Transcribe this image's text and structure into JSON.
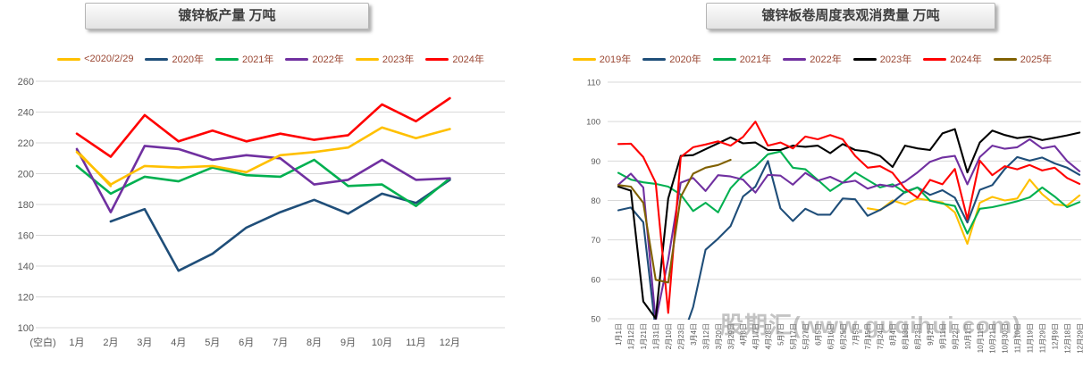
{
  "watermark": {
    "text": "股期汇(www.guqihui.com)"
  },
  "legend_text_color": "#9A4632",
  "chart_data": [
    {
      "id": "production",
      "type": "line",
      "title": "镀锌板产量  万吨",
      "unit": "万吨",
      "categories": [
        "(空白)",
        "1月",
        "2月",
        "3月",
        "4月",
        "5月",
        "6月",
        "7月",
        "8月",
        "9月",
        "10月",
        "11月",
        "12月"
      ],
      "ylim": [
        100,
        260
      ],
      "ytick_step": 20,
      "yticks": [
        260,
        240,
        220,
        200,
        180,
        160,
        140,
        120,
        100
      ],
      "grid": true,
      "legend_position": "top",
      "series": [
        {
          "name": "<2020/2/29",
          "color": "#FFC000",
          "values": [
            null,
            215,
            192,
            null,
            null,
            null,
            null,
            null,
            null,
            null,
            null,
            null,
            null
          ]
        },
        {
          "name": "2020年",
          "color": "#1F4E79",
          "values": [
            null,
            null,
            169,
            177,
            137,
            148,
            165,
            175,
            183,
            174,
            187,
            181,
            196
          ]
        },
        {
          "name": "2021年",
          "color": "#00B050",
          "values": [
            null,
            205,
            187,
            198,
            195,
            204,
            199,
            198,
            209,
            192,
            193,
            179,
            197
          ]
        },
        {
          "name": "2022年",
          "color": "#7030A0",
          "values": [
            null,
            216,
            175,
            218,
            216,
            209,
            212,
            210,
            193,
            196,
            209,
            196,
            197
          ]
        },
        {
          "name": "2023年",
          "color": "#FFC000",
          "values": [
            null,
            214,
            193,
            205,
            204,
            205,
            201,
            212,
            214,
            217,
            230,
            223,
            229
          ]
        },
        {
          "name": "2024年",
          "color": "#FF0000",
          "values": [
            null,
            226,
            211,
            238,
            221,
            228,
            221,
            226,
            222,
            225,
            245,
            234,
            249
          ]
        }
      ]
    },
    {
      "id": "consumption",
      "type": "line",
      "title": "镀锌板卷周度表观消费量  万吨",
      "unit": "万吨",
      "categories": [
        "1月1日",
        "1月12日",
        "1月21日",
        "1月31日",
        "2月10日",
        "2月23日",
        "3月4日",
        "3月12日",
        "3月20日",
        "3月29日",
        "4月8日",
        "4月17日",
        "4月28日",
        "5月7日",
        "5月17日",
        "5月27日",
        "6月5日",
        "6月16日",
        "6月25日",
        "7月5日",
        "7月15日",
        "7月24日",
        "8月4日",
        "8月13日",
        "8月23日",
        "9月2日",
        "9月11日",
        "9月22日",
        "10月1日",
        "10月11日",
        "10月21日",
        "10月30日",
        "11月10日",
        "11月19日",
        "11月29日",
        "12月9日",
        "12月18日",
        "12月29日"
      ],
      "ylim": [
        50,
        110
      ],
      "ytick_step": 10,
      "yticks": [
        110,
        100,
        90,
        80,
        70,
        60,
        50
      ],
      "grid": true,
      "legend_position": "top",
      "x_label_rotation": -90,
      "series": [
        {
          "name": "2019年",
          "color": "#FFC000",
          "values": [
            null,
            null,
            null,
            null,
            null,
            null,
            null,
            null,
            null,
            null,
            null,
            null,
            null,
            null,
            null,
            null,
            null,
            null,
            null,
            null,
            78,
            77.5,
            80,
            79,
            80.5,
            80,
            79.5,
            77,
            69,
            79.4,
            80.9,
            80,
            80.5,
            85.3,
            81.6,
            79,
            78.7,
            81.3
          ]
        },
        {
          "name": "2020年",
          "color": "#1F4E79",
          "values": [
            77.5,
            78.2,
            74.5,
            47,
            42,
            44,
            53,
            67.5,
            70.3,
            73.5,
            81,
            83.5,
            90,
            78,
            74.8,
            77.9,
            76.4,
            76.4,
            80.5,
            80.3,
            76.1,
            77.6,
            79.5,
            82.2,
            83.3,
            81.4,
            82.6,
            80.7,
            74.4,
            82.7,
            83.9,
            88,
            91,
            90.1,
            90.9,
            89.4,
            88.3,
            86.5
          ]
        },
        {
          "name": "2021年",
          "color": "#00B050",
          "values": [
            87,
            85.3,
            84.6,
            84.2,
            83.5,
            81.5,
            77.3,
            79.4,
            77,
            83.1,
            86.4,
            88.6,
            91.7,
            92.4,
            88.3,
            87.9,
            85.2,
            82.4,
            84.5,
            87.1,
            85.2,
            83.3,
            84.1,
            82,
            83.3,
            79.9,
            79.2,
            78.6,
            71.6,
            77.9,
            78.3,
            79,
            79.8,
            80.8,
            83.3,
            81,
            78.3,
            79.6
          ]
        },
        {
          "name": "2022年",
          "color": "#7030A0",
          "values": [
            84,
            86.8,
            83.3,
            49.5,
            65,
            84.5,
            85.7,
            82.4,
            86.4,
            86.1,
            85.3,
            82,
            86.5,
            86.3,
            84,
            87,
            85,
            86,
            84.5,
            85,
            83,
            84,
            83.5,
            84.8,
            87.1,
            89.8,
            90.9,
            91.3,
            84.1,
            91,
            93.9,
            93.1,
            93.5,
            95.5,
            93.2,
            93.8,
            90,
            87.4
          ]
        },
        {
          "name": "2023年",
          "color": "#000000",
          "values": [
            83.5,
            82.5,
            54.4,
            50.1,
            80.5,
            91.3,
            91.5,
            93,
            94.5,
            96,
            94.5,
            94.7,
            92.8,
            92.8,
            93.9,
            93.6,
            93.9,
            92,
            94.3,
            92.8,
            92.4,
            91.3,
            88.5,
            93.9,
            93.2,
            92.8,
            97,
            98.1,
            87.1,
            94.7,
            97.7,
            96.6,
            95.8,
            96.2,
            95.3,
            95.9,
            96.5,
            97.2
          ]
        },
        {
          "name": "2024年",
          "color": "#FF0000",
          "values": [
            94.3,
            94.4,
            91,
            84.5,
            51.5,
            91,
            93.5,
            94.2,
            95,
            93.9,
            96.1,
            100,
            93.9,
            94.7,
            93.2,
            96.2,
            95.5,
            96.6,
            95.5,
            91.3,
            88.3,
            88.7,
            87,
            83,
            80.7,
            85.2,
            84.1,
            88,
            75.3,
            90.1,
            86.4,
            88.7,
            87.9,
            89,
            87.6,
            88.3,
            85.7,
            84.2
          ]
        },
        {
          "name": "2025年",
          "color": "#806000",
          "values": [
            83.9,
            83.5,
            79.4,
            59.9,
            59.2,
            80.9,
            86.8,
            88.3,
            89,
            90.3,
            null,
            null,
            null,
            null,
            null,
            null,
            null,
            null,
            null,
            null,
            null,
            null,
            null,
            null,
            null,
            null,
            null,
            null,
            null,
            null,
            null,
            null,
            null,
            null,
            null,
            null,
            null,
            null
          ]
        }
      ]
    }
  ]
}
